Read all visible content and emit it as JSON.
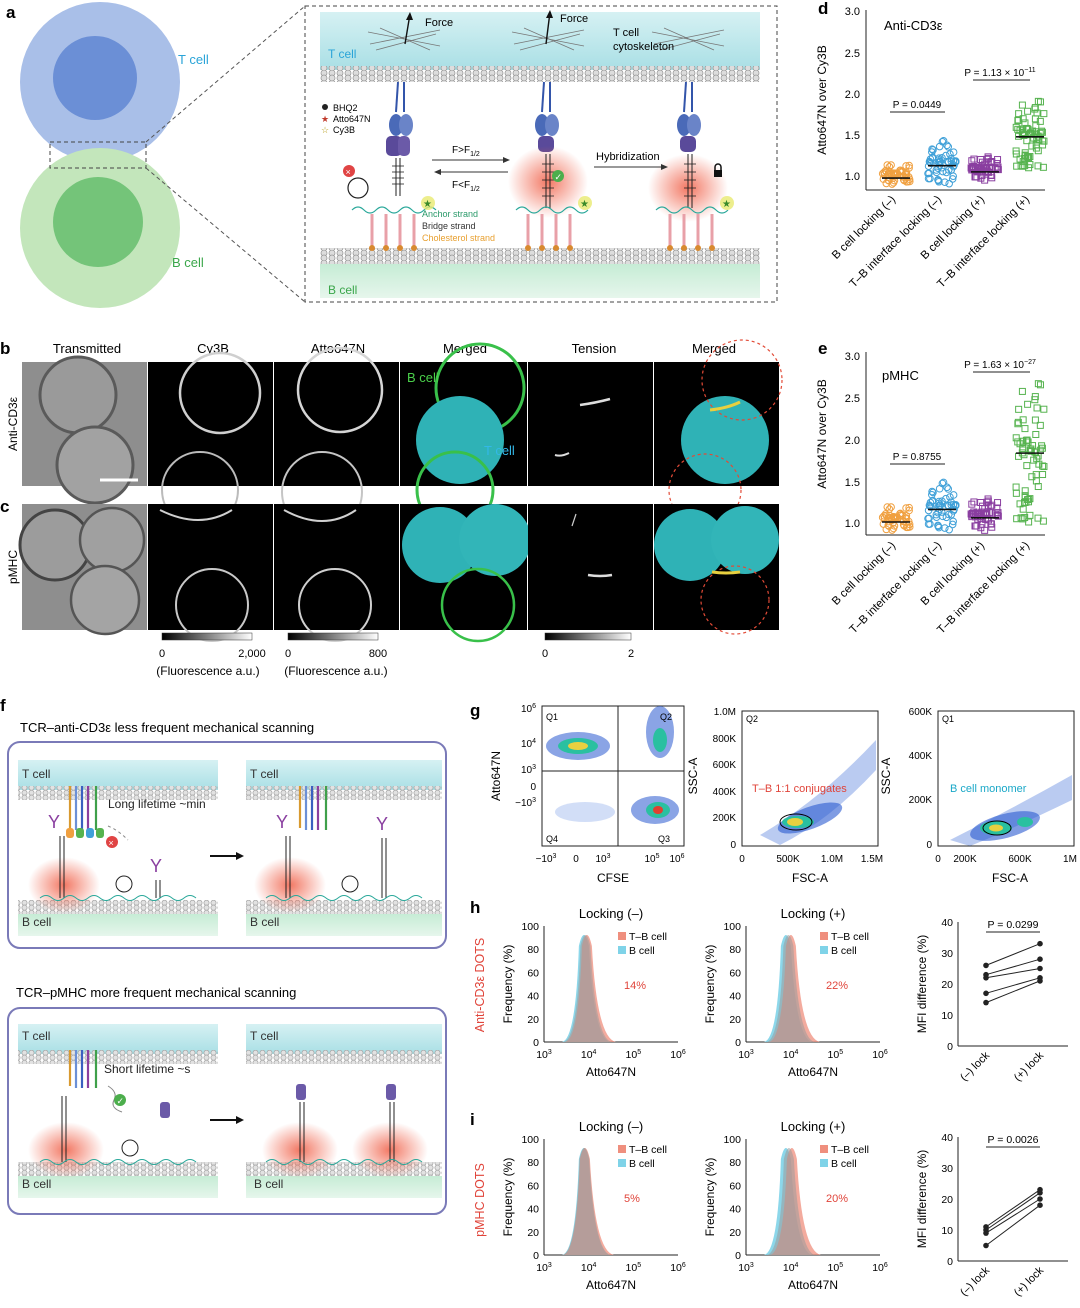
{
  "panel_letters": [
    "a",
    "b",
    "c",
    "d",
    "e",
    "f",
    "g",
    "h",
    "i"
  ],
  "colors": {
    "t_cell": "#9fb6e4",
    "t_cell_nucleus": "#5f86d4",
    "b_cell": "#bfe3b7",
    "b_cell_nucleus": "#6dbf73",
    "membrane_teal": "#bfe6ea",
    "b_teal": "#c9ecd5",
    "orange": "#f0a040",
    "blue": "#3fa0d8",
    "purple": "#8a3fa0",
    "green": "#56b34f",
    "red_label": "#e0443a",
    "cyan_label": "#1aa8c8",
    "tb_fill": "#ef8f7e",
    "b_fill": "#7fd3e8"
  },
  "a": {
    "t_cell_label": "T cell",
    "b_cell_label": "B cell",
    "force": "Force",
    "cytoskeleton": [
      "T cell",
      "cytoskeleton"
    ],
    "t_cell_inner": "T cell",
    "b_cell_inner": "B cell",
    "legend": [
      "BHQ2",
      "Atto647N",
      "Cy3B"
    ],
    "f_gt": "F>F",
    "f_lt": "F<F",
    "f_sub": "1/2",
    "hybridization": "Hybridization",
    "strands": [
      "Anchor strand",
      "Bridge strand",
      "Cholesterol strand"
    ]
  },
  "b": {
    "columns": [
      "Transmitted",
      "Cy3B",
      "Atto647N",
      "Merged",
      "Tension",
      "Merged"
    ],
    "row_b": "Anti-CD3ε",
    "row_c": "pMHC",
    "b_cell_text": "B cell",
    "t_cell_text": "T cell",
    "scale1": {
      "min": "0",
      "max": "2,000",
      "label": "(Fluorescence a.u.)"
    },
    "scale2": {
      "min": "0",
      "max": "800",
      "label": "(Fluorescence a.u.)"
    },
    "scale3": {
      "min": "0",
      "max": "2"
    }
  },
  "d": {
    "title": "Anti-CD3ε",
    "ylabel": "Atto647N over Cy3B",
    "yticks": [
      "3.0",
      "2.5",
      "2.0",
      "1.5",
      "1.0"
    ],
    "categories": [
      "B cell  locking (–)",
      "T–B interface locking (–)",
      "B cell locking (+)",
      "T–B interface locking (+)"
    ],
    "p1": "P = 0.0449",
    "p2": "P = 1.13 × 10",
    "p2_exp": "−11",
    "group_values": [
      [
        0.9,
        1.15
      ],
      [
        0.9,
        1.45
      ],
      [
        0.95,
        1.25
      ],
      [
        1.1,
        1.95
      ]
    ]
  },
  "e": {
    "title": "pMHC",
    "ylabel": "Atto647N over Cy3B",
    "yticks": [
      "3.0",
      "2.5",
      "2.0",
      "1.5",
      "1.0"
    ],
    "categories": [
      "B cell  locking (–)",
      "T–B interface locking (–)",
      "B cell locking (+)",
      "T–B interface locking (+)"
    ],
    "p1": "P = 0.8755",
    "p2": "P = 1.63 × 10",
    "p2_exp": "−27",
    "group_values": [
      [
        0.9,
        1.2
      ],
      [
        0.9,
        1.5
      ],
      [
        0.9,
        1.3
      ],
      [
        1.0,
        2.75
      ]
    ]
  },
  "f": {
    "title1": "TCR–anti-CD3ε less frequent mechanical scanning",
    "title2": "TCR–pMHC more frequent mechanical scanning",
    "t_cell": "T cell",
    "b_cell": "B cell",
    "lifetime1": "Long lifetime ~min",
    "lifetime2": "Short lifetime ~s"
  },
  "g": {
    "plot1": {
      "ylabel": "Atto647N",
      "xlabel": "CFSE",
      "quadrants": [
        "Q1",
        "Q2",
        "Q3",
        "Q4"
      ],
      "yticks": [
        "10",
        "10",
        "10",
        "0",
        "−10"
      ],
      "yexp": [
        "6",
        "4",
        "3",
        "",
        "3"
      ],
      "xticks": [
        "−10",
        "0",
        "10",
        "10",
        "10"
      ],
      "xexp": [
        "3",
        "",
        "3",
        "5",
        "6"
      ]
    },
    "plot2": {
      "ylabel": "SSC-A",
      "xlabel": "FSC-A",
      "quadrant": "Q2",
      "gate": "T–B 1:1 conjugates",
      "yticks": [
        "1.0M",
        "800K",
        "600K",
        "400K",
        "200K",
        "0"
      ],
      "xticks": [
        "0",
        "500K",
        "1.0M",
        "1.5M"
      ]
    },
    "plot3": {
      "ylabel": "SSC-A",
      "xlabel": "FSC-A",
      "quadrant": "Q1",
      "gate": "B cell monomer",
      "yticks": [
        "600K",
        "400K",
        "200K",
        "0"
      ],
      "xticks": [
        "0",
        "200K",
        "600K",
        "1M"
      ]
    }
  },
  "h": {
    "row_label": "Anti-CD3ε DOTS",
    "titles": [
      "Locking (–)",
      "Locking (+)"
    ],
    "ylabel": "Frequency (%)",
    "xlabel": "Atto647N",
    "yticks": [
      "100",
      "80",
      "60",
      "40",
      "20",
      "0"
    ],
    "xexp": [
      "3",
      "4",
      "5",
      "6"
    ],
    "xbase": "10",
    "legend": [
      "T–B cell",
      "B cell"
    ],
    "pct": [
      "14%",
      "22%"
    ],
    "mfi": {
      "ylabel": "MFI difference (%)",
      "yticks": [
        "40",
        "30",
        "20",
        "10",
        "0"
      ],
      "xticks": [
        "(–) lock",
        "(+) lock"
      ],
      "p": "P = 0.0299",
      "pairs": [
        [
          26,
          33
        ],
        [
          23,
          28
        ],
        [
          22,
          25
        ],
        [
          17,
          22
        ],
        [
          14,
          21
        ]
      ]
    }
  },
  "i": {
    "row_label": "pMHC DOTS",
    "titles": [
      "Locking (–)",
      "Locking (+)"
    ],
    "ylabel": "Frequency (%)",
    "xlabel": "Atto647N",
    "yticks": [
      "100",
      "80",
      "60",
      "40",
      "20",
      "0"
    ],
    "xexp": [
      "3",
      "4",
      "5",
      "6"
    ],
    "xbase": "10",
    "legend": [
      "T–B cell",
      "B cell"
    ],
    "pct": [
      "5%",
      "20%"
    ],
    "mfi": {
      "ylabel": "MFI difference (%)",
      "yticks": [
        "40",
        "30",
        "20",
        "10",
        "0"
      ],
      "xticks": [
        "(–) lock",
        "(+) lock"
      ],
      "p": "P = 0.0026",
      "pairs": [
        [
          11,
          23
        ],
        [
          10,
          22
        ],
        [
          9,
          20
        ],
        [
          5,
          18
        ]
      ]
    }
  }
}
